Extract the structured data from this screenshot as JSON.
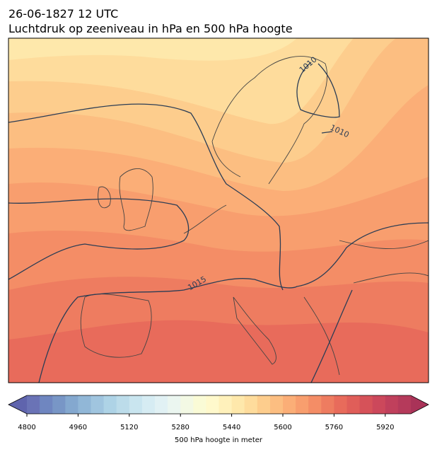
{
  "title": {
    "line1": "26-06-1827 12 UTC",
    "line2": "Luchtdruk op zeeniveau in hPa en 500 hPa hoogte"
  },
  "contour_labels": [
    1010,
    1010,
    1015
  ],
  "colorbar": {
    "label": "500 hPa hoogte in meter",
    "lim": [
      4800,
      6000
    ],
    "ticks": [
      4800,
      4960,
      5120,
      5280,
      5440,
      5600,
      5760,
      5920
    ],
    "under": "#5f64ad",
    "over": "#a93358",
    "colors": [
      "#6a73b6",
      "#6f86c0",
      "#7896c6",
      "#84a8cf",
      "#91b7d7",
      "#a0c5df",
      "#aed3e6",
      "#bcdcea",
      "#c9e5ef",
      "#d6ecf3",
      "#e1f1f4",
      "#ebf6f0",
      "#f3f9e4",
      "#fafbd6",
      "#fff9cc",
      "#fff1bb",
      "#fee8ab",
      "#fedc9c",
      "#fdcd8d",
      "#fcbe81",
      "#fbae77",
      "#f89e6e",
      "#f48d66",
      "#ee7c60",
      "#e86b5b",
      "#e05e59",
      "#d65259",
      "#cc485b",
      "#c0405c",
      "#b53a5b"
    ]
  }
}
